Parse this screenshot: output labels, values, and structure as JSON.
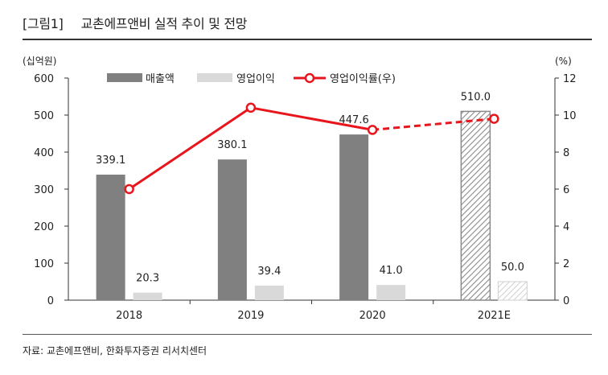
{
  "title": {
    "figure_label": "[그림1]",
    "text": "교촌에프앤비 실적 추이 및 전망"
  },
  "source": "자료: 교촌에프앤비, 한화투자증권 리서치센터",
  "colors": {
    "revenue": "#808080",
    "op_income": "#d9d9d9",
    "op_margin": "#e8161c",
    "estimate_hatch": "#8a8a8a"
  },
  "chart_data": {
    "type": "bar",
    "categories": [
      "2018",
      "2019",
      "2020",
      "2021E"
    ],
    "estimate_category": "2021E",
    "left_axis": {
      "unit_label": "(십억원)",
      "ylim": [
        0,
        600
      ],
      "ticks": [
        "0",
        "100",
        "200",
        "300",
        "400",
        "500",
        "600"
      ]
    },
    "right_axis": {
      "unit_label": "(%)",
      "ylim": [
        0,
        12
      ],
      "ticks": [
        "0",
        "2",
        "4",
        "6",
        "8",
        "10",
        "12"
      ]
    },
    "legend_position": "top",
    "grid": false,
    "series": [
      {
        "name": "매출액",
        "type": "bar",
        "axis": "left",
        "values": [
          339.1,
          380.1,
          447.6,
          510.0
        ],
        "labels": [
          "339.1",
          "380.1",
          "447.6",
          "510.0"
        ]
      },
      {
        "name": "영업이익",
        "type": "bar",
        "axis": "left",
        "values": [
          20.3,
          39.4,
          41.0,
          50.0
        ],
        "labels": [
          "20.3",
          "39.4",
          "41.0",
          "50.0"
        ]
      },
      {
        "name": "영업이익률(우)",
        "type": "line",
        "axis": "right",
        "values": [
          6.0,
          10.4,
          9.2,
          9.8
        ]
      }
    ]
  }
}
